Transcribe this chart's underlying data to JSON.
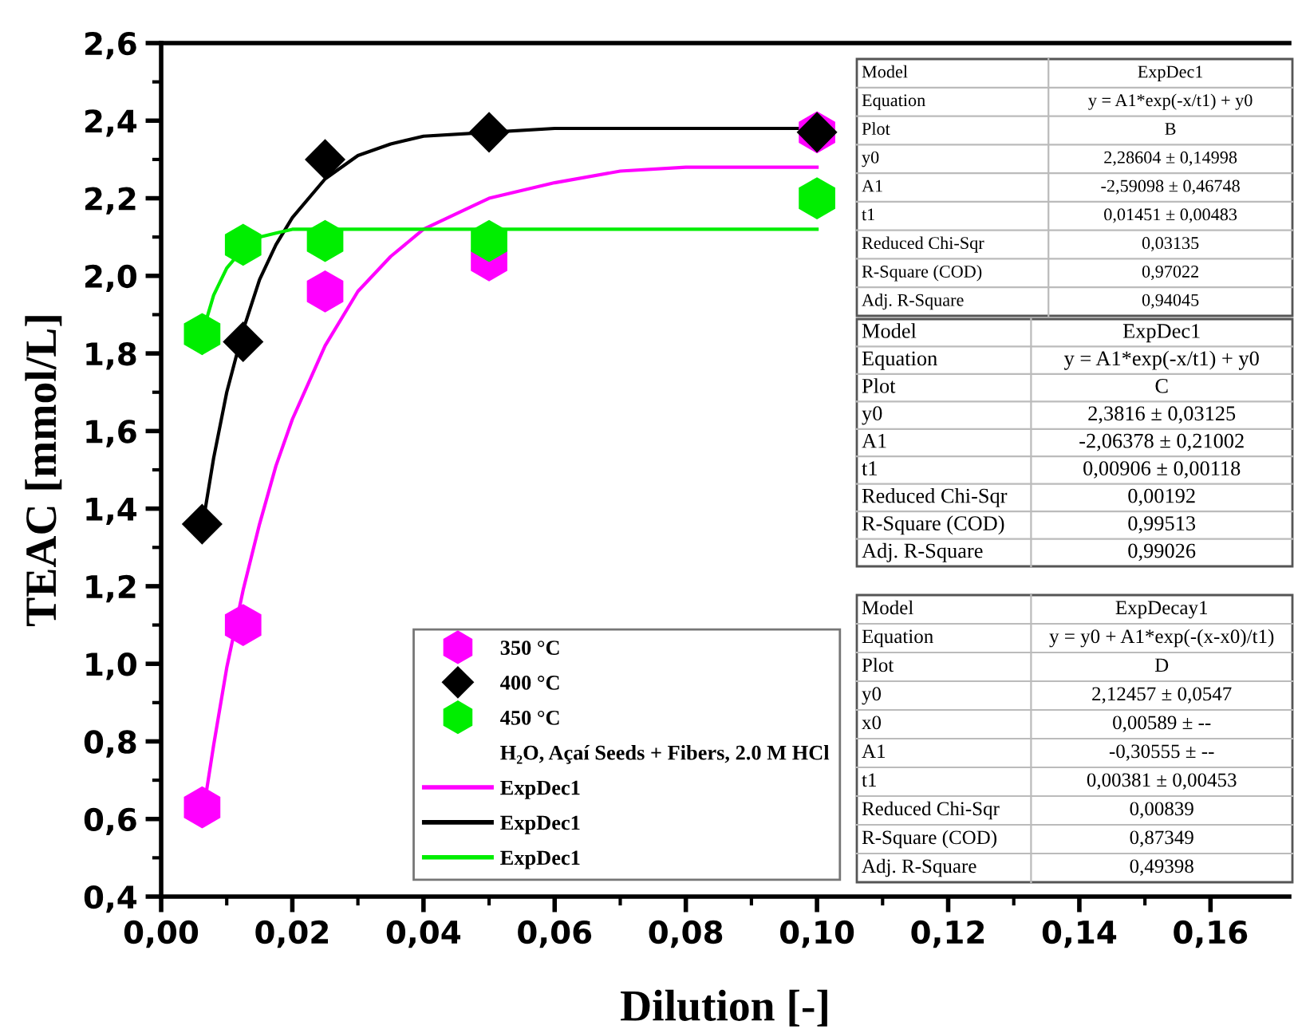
{
  "chart_data": {
    "type": "scatter",
    "xlabel": "Dilution [-]",
    "ylabel": "TEAC [mmol/L]",
    "legend_title": "H₂O, Açaí Seeds + Fibers, 2.0 M HCl",
    "x": [
      0.00625,
      0.0125,
      0.025,
      0.05,
      0.1
    ],
    "series": [
      {
        "name": "350 °C",
        "color": "#ff00ff",
        "values": [
          0.63,
          1.1,
          1.96,
          2.04,
          2.37
        ]
      },
      {
        "name": "400 °C",
        "marker": "diamond",
        "color": "#000000",
        "values": [
          1.36,
          1.83,
          2.3,
          2.37,
          2.37
        ]
      },
      {
        "name": "450 °C",
        "color": "#00ee00",
        "values": [
          1.85,
          2.08,
          2.09,
          2.09,
          2.2
        ]
      },
      {
        "name": "ExpDec1",
        "type": "line",
        "marker": "none",
        "color": "#ff00ff",
        "x": [
          0.00625,
          0.008,
          0.01,
          0.0125,
          0.015,
          0.0175,
          0.02,
          0.025,
          0.03,
          0.035,
          0.04,
          0.05,
          0.06,
          0.07,
          0.08,
          0.1
        ],
        "values": [
          0.6,
          0.79,
          0.99,
          1.19,
          1.36,
          1.51,
          1.63,
          1.82,
          1.96,
          2.05,
          2.12,
          2.2,
          2.24,
          2.27,
          2.28,
          2.28
        ]
      },
      {
        "name": "ExpDec1",
        "type": "line",
        "marker": "none",
        "color": "#000000",
        "x": [
          0.00625,
          0.008,
          0.01,
          0.0125,
          0.015,
          0.0175,
          0.02,
          0.025,
          0.03,
          0.035,
          0.04,
          0.05,
          0.06,
          0.08,
          0.1
        ],
        "values": [
          1.35,
          1.53,
          1.7,
          1.86,
          1.99,
          2.08,
          2.15,
          2.25,
          2.31,
          2.34,
          2.36,
          2.37,
          2.38,
          2.38,
          2.38
        ]
      },
      {
        "name": "ExpDec1",
        "type": "line",
        "marker": "none",
        "color": "#00ee00",
        "x": [
          0.00625,
          0.008,
          0.01,
          0.0125,
          0.015,
          0.0175,
          0.02,
          0.025,
          0.05,
          0.1
        ],
        "values": [
          1.85,
          1.95,
          2.02,
          2.07,
          2.1,
          2.11,
          2.12,
          2.12,
          2.12,
          2.12
        ]
      }
    ],
    "xlim": [
      0,
      0.172
    ],
    "ylim": [
      0.4,
      2.6
    ],
    "xticks": [
      {
        "value": 0,
        "label": "0,00"
      },
      {
        "value": 0.02,
        "label": "0,02"
      },
      {
        "value": 0.04,
        "label": "0,04"
      },
      {
        "value": 0.06,
        "label": "0,06"
      },
      {
        "value": 0.08,
        "label": "0,08"
      },
      {
        "value": 0.1,
        "label": "0,10"
      },
      {
        "value": 0.12,
        "label": "0,12"
      },
      {
        "value": 0.14,
        "label": "0,14"
      },
      {
        "value": 0.16,
        "label": "0,16"
      }
    ],
    "yticks": [
      {
        "value": 0.4,
        "label": "0,4"
      },
      {
        "value": 0.6,
        "label": "0,6"
      },
      {
        "value": 0.8,
        "label": "0,8"
      },
      {
        "value": 1.0,
        "label": "1,0"
      },
      {
        "value": 1.2,
        "label": "1,2"
      },
      {
        "value": 1.4,
        "label": "1,4"
      },
      {
        "value": 1.6,
        "label": "1,6"
      },
      {
        "value": 1.8,
        "label": "1,8"
      },
      {
        "value": 2.0,
        "label": "2,0"
      },
      {
        "value": 2.2,
        "label": "2,2"
      },
      {
        "value": 2.4,
        "label": "2,4"
      },
      {
        "value": 2.6,
        "label": "2,6"
      }
    ],
    "grid": false,
    "legend": "bottom",
    "annotations": [
      "Model",
      "ExpDec1",
      "Equation",
      "y = A1*exp(-x/t1) + y0",
      "Plot",
      "B",
      "y0",
      "2,28604 ± 0,14998",
      "A1",
      "-2,59098 ± 0,46748",
      "t1",
      "0,01451 ± 0,00483",
      "Reduced Chi-Sqr",
      "0,03135",
      "R-Square (COD)",
      "0,97022",
      "Adj. R-Square",
      "0,94045",
      "Model",
      "ExpDec1",
      "Equation",
      "y = A1*exp(-x/t1) + y0",
      "Plot",
      "C",
      "y0",
      "2,3816 ± 0,03125",
      "A1",
      "-2,06378 ± 0,21002",
      "t1",
      "0,00906 ± 0,00118",
      "Reduced Chi-Sqr",
      "0,00192",
      "R-Square (COD)",
      "0,99513",
      "Adj. R-Square",
      "0,99026",
      "Model",
      "ExpDecay1",
      "Equation",
      "y = y0 + A1*exp(-(x-x0)/t1)",
      "Plot",
      "D",
      "y0",
      "2,12457 ± 0,0547",
      "x0",
      "0,00589 ± --",
      "A1",
      "-0,30555 ± --",
      "t1",
      "0,00381 ± 0,00453",
      "Reduced Chi-Sqr",
      "0,00839",
      "R-Square (COD)",
      "0,87349",
      "Adj. R-Square",
      "0,49398"
    ]
  }
}
